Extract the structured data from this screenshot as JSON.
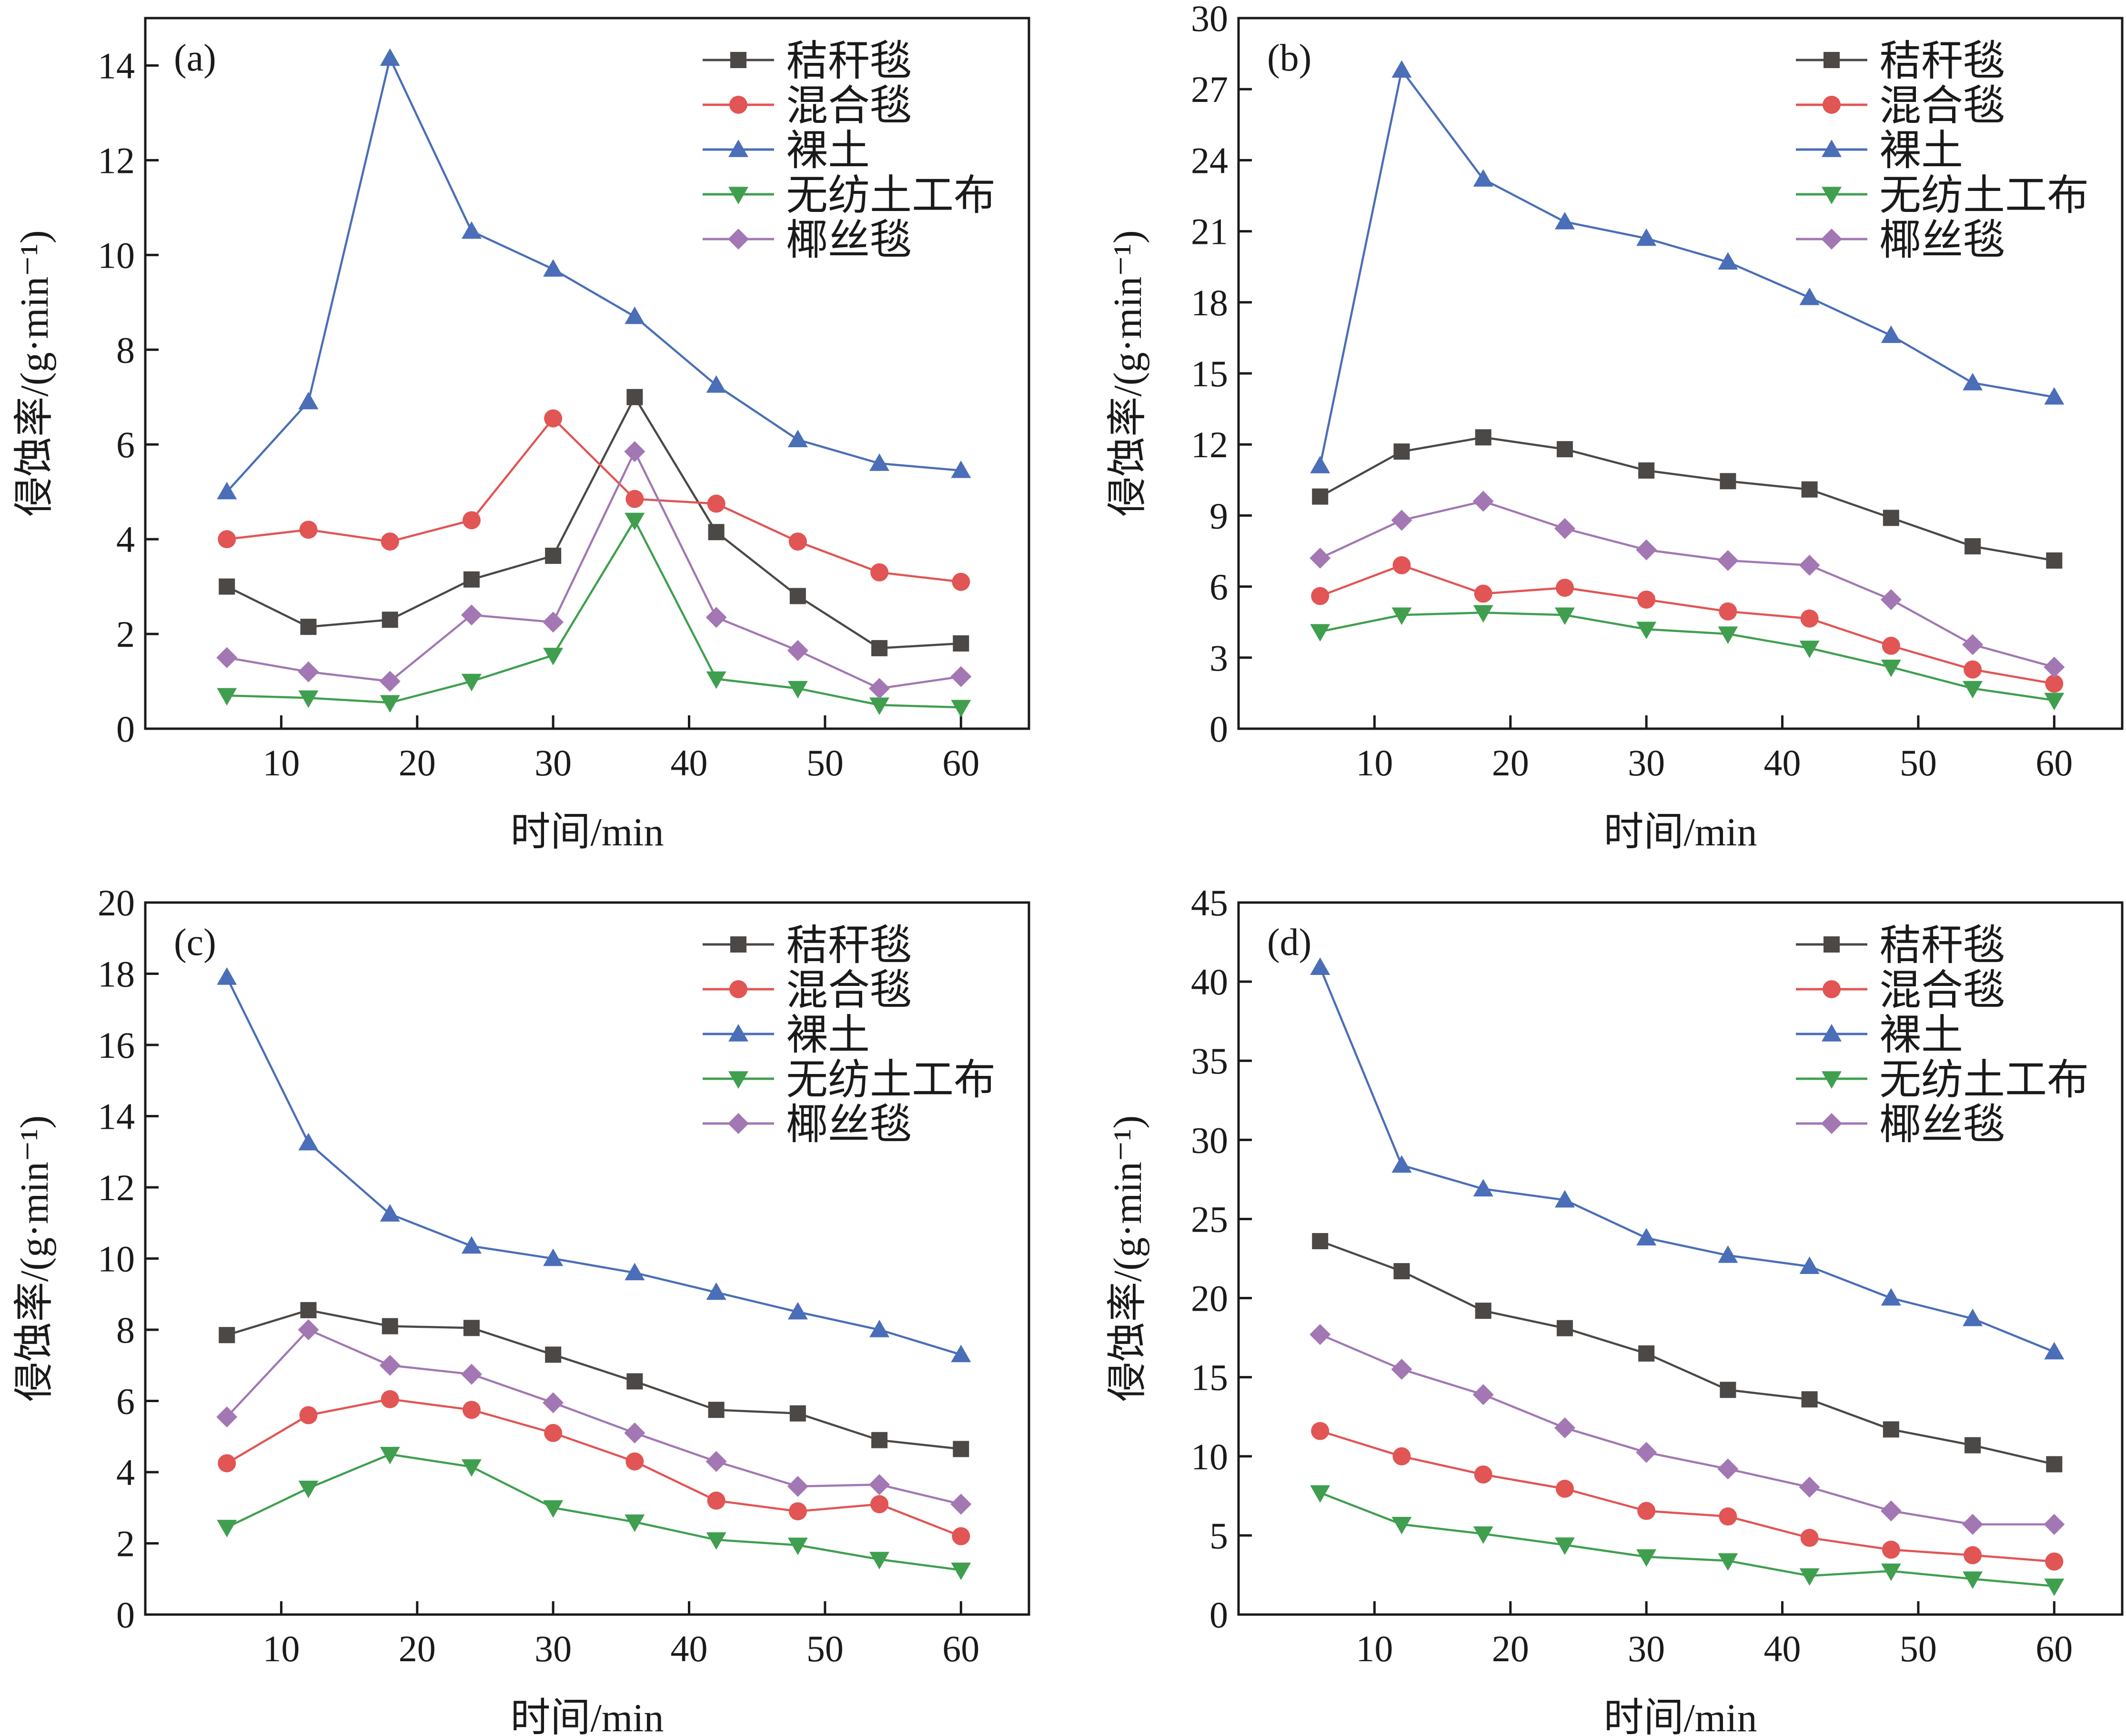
{
  "legend": [
    {
      "key": "straw",
      "label": "秸秆毯",
      "color": "#4b4845",
      "marker": "square"
    },
    {
      "key": "mixed",
      "label": "混合毯",
      "color": "#e15554",
      "marker": "circle"
    },
    {
      "key": "bare",
      "label": "裸土",
      "color": "#4a6eb8",
      "marker": "triangle-up"
    },
    {
      "key": "nonwoven",
      "label": "无纺土工布",
      "color": "#3f9f4f",
      "marker": "triangle-down"
    },
    {
      "key": "coir",
      "label": "椰丝毯",
      "color": "#a277b3",
      "marker": "diamond"
    }
  ],
  "chart_data": [
    {
      "type": "line",
      "panel_label": "(a)",
      "xlabel": "时间/min",
      "ylabel": "侵蚀率/(g·min⁻¹)",
      "xlim": [
        0,
        65
      ],
      "ylim": [
        0,
        15
      ],
      "xticks": [
        10,
        20,
        30,
        40,
        50,
        60
      ],
      "yticks": [
        0,
        2,
        4,
        6,
        8,
        10,
        12,
        14
      ],
      "x": [
        6,
        12,
        18,
        24,
        30,
        36,
        42,
        48,
        54,
        60
      ],
      "series": [
        {
          "name": "秸秆毯",
          "values": [
            3.0,
            2.15,
            2.3,
            3.15,
            3.65,
            7.0,
            4.15,
            2.8,
            1.7,
            1.8
          ]
        },
        {
          "name": "混合毯",
          "values": [
            4.0,
            4.2,
            3.95,
            4.4,
            6.55,
            4.85,
            4.75,
            3.95,
            3.3,
            3.1
          ]
        },
        {
          "name": "裸土",
          "values": [
            5.0,
            6.9,
            14.15,
            10.5,
            9.7,
            8.7,
            7.25,
            6.1,
            5.6,
            5.45
          ]
        },
        {
          "name": "无纺土工布",
          "values": [
            0.7,
            0.65,
            0.55,
            1.0,
            1.55,
            4.4,
            1.05,
            0.85,
            0.5,
            0.45
          ]
        },
        {
          "name": "椰丝毯",
          "values": [
            1.5,
            1.2,
            1.0,
            2.4,
            2.25,
            5.85,
            2.35,
            1.65,
            0.85,
            1.1
          ]
        }
      ]
    },
    {
      "type": "line",
      "panel_label": "(b)",
      "xlabel": "时间/min",
      "ylabel": "侵蚀率/(g·min⁻¹)",
      "xlim": [
        0,
        65
      ],
      "ylim": [
        0,
        30
      ],
      "xticks": [
        10,
        20,
        30,
        40,
        50,
        60
      ],
      "yticks": [
        0,
        3,
        6,
        9,
        12,
        15,
        18,
        21,
        24,
        27,
        30
      ],
      "x": [
        6,
        12,
        18,
        24,
        30,
        36,
        42,
        48,
        54,
        60
      ],
      "series": [
        {
          "name": "秸秆毯",
          "values": [
            9.8,
            11.7,
            12.3,
            11.8,
            10.9,
            10.45,
            10.1,
            8.9,
            7.7,
            7.1
          ]
        },
        {
          "name": "混合毯",
          "values": [
            5.6,
            6.9,
            5.7,
            5.95,
            5.45,
            4.95,
            4.65,
            3.5,
            2.5,
            1.9
          ]
        },
        {
          "name": "裸土",
          "values": [
            11.1,
            27.8,
            23.2,
            21.4,
            20.7,
            19.7,
            18.2,
            16.6,
            14.6,
            14.0
          ]
        },
        {
          "name": "无纺土工布",
          "values": [
            4.1,
            4.8,
            4.9,
            4.8,
            4.2,
            4.0,
            3.4,
            2.6,
            1.7,
            1.2
          ]
        },
        {
          "name": "椰丝毯",
          "values": [
            7.2,
            8.8,
            9.6,
            8.45,
            7.55,
            7.1,
            6.9,
            5.45,
            3.55,
            2.6
          ]
        }
      ]
    },
    {
      "type": "line",
      "panel_label": "(c)",
      "xlabel": "时间/min",
      "ylabel": "侵蚀率/(g·min⁻¹)",
      "xlim": [
        0,
        65
      ],
      "ylim": [
        0,
        20
      ],
      "xticks": [
        10,
        20,
        30,
        40,
        50,
        60
      ],
      "yticks": [
        0,
        2,
        4,
        6,
        8,
        10,
        12,
        14,
        16,
        18,
        20
      ],
      "x": [
        6,
        12,
        18,
        24,
        30,
        36,
        42,
        48,
        54,
        60
      ],
      "series": [
        {
          "name": "秸秆毯",
          "values": [
            7.85,
            8.55,
            8.1,
            8.05,
            7.3,
            6.55,
            5.75,
            5.65,
            4.9,
            4.65
          ]
        },
        {
          "name": "混合毯",
          "values": [
            4.25,
            5.6,
            6.05,
            5.75,
            5.1,
            4.3,
            3.2,
            2.9,
            3.1,
            2.2
          ]
        },
        {
          "name": "裸土",
          "values": [
            17.9,
            13.25,
            11.25,
            10.35,
            10.0,
            9.6,
            9.05,
            8.5,
            8.0,
            7.3
          ]
        },
        {
          "name": "无纺土工布",
          "values": [
            2.45,
            3.55,
            4.5,
            4.15,
            3.0,
            2.6,
            2.1,
            1.95,
            1.55,
            1.25
          ]
        },
        {
          "name": "椰丝毯",
          "values": [
            5.55,
            8.0,
            7.0,
            6.75,
            5.95,
            5.1,
            4.3,
            3.6,
            3.65,
            3.1
          ]
        }
      ]
    },
    {
      "type": "line",
      "panel_label": "(d)",
      "xlabel": "时间/min",
      "ylabel": "侵蚀率/(g·min⁻¹)",
      "xlim": [
        0,
        65
      ],
      "ylim": [
        0,
        45
      ],
      "xticks": [
        10,
        20,
        30,
        40,
        50,
        60
      ],
      "yticks": [
        0,
        5,
        10,
        15,
        20,
        25,
        30,
        35,
        40,
        45
      ],
      "x": [
        6,
        12,
        18,
        24,
        30,
        36,
        42,
        48,
        54,
        60
      ],
      "series": [
        {
          "name": "秸秆毯",
          "values": [
            23.6,
            21.7,
            19.2,
            18.1,
            16.5,
            14.2,
            13.6,
            11.7,
            10.7,
            9.5
          ]
        },
        {
          "name": "混合毯",
          "values": [
            11.6,
            10.0,
            8.85,
            7.95,
            6.55,
            6.2,
            4.85,
            4.1,
            3.75,
            3.35
          ]
        },
        {
          "name": "裸土",
          "values": [
            40.9,
            28.4,
            26.9,
            26.2,
            23.8,
            22.7,
            22.0,
            20.0,
            18.7,
            16.6
          ]
        },
        {
          "name": "无纺土工布",
          "values": [
            7.7,
            5.7,
            5.1,
            4.4,
            3.65,
            3.4,
            2.45,
            2.75,
            2.25,
            1.8
          ]
        },
        {
          "name": "椰丝毯",
          "values": [
            17.7,
            15.5,
            13.9,
            11.8,
            10.25,
            9.2,
            8.05,
            6.55,
            5.7,
            5.7
          ]
        }
      ]
    }
  ]
}
